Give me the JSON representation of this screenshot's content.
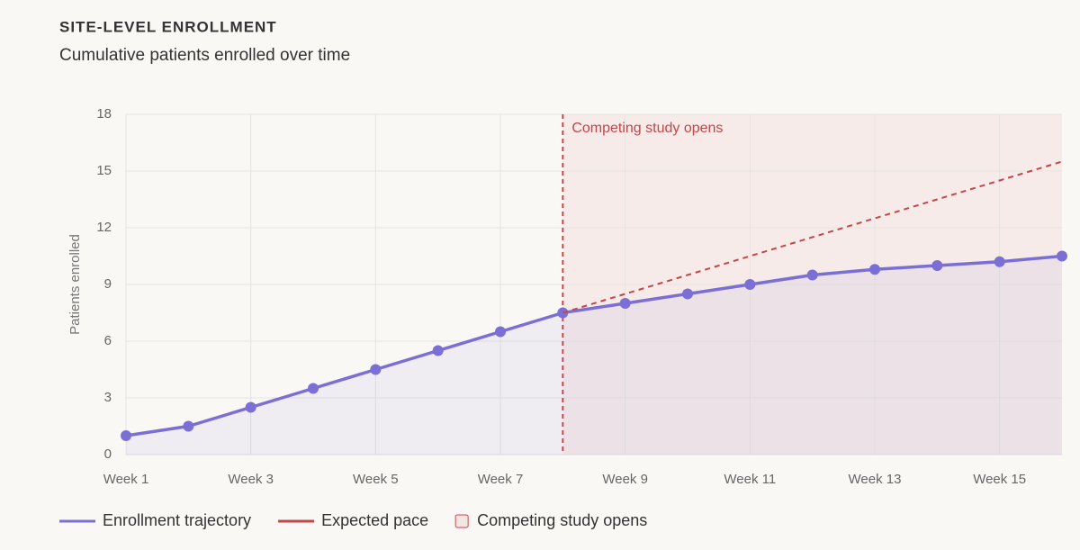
{
  "chart_data": {
    "type": "line",
    "title": "SITE-LEVEL ENROLLMENT",
    "subtitle": "Cumulative patients enrolled over time",
    "y_label": "Patients enrolled",
    "x": [
      1,
      2,
      3,
      4,
      5,
      6,
      7,
      8,
      9,
      10,
      11,
      12,
      13,
      14,
      15,
      16
    ],
    "xlim": [
      1,
      16
    ],
    "xticks": [
      {
        "value": 1,
        "label": "Week 1"
      },
      {
        "value": 3,
        "label": "Week 3"
      },
      {
        "value": 5,
        "label": "Week 5"
      },
      {
        "value": 7,
        "label": "Week 7"
      },
      {
        "value": 9,
        "label": "Week 9"
      },
      {
        "value": 11,
        "label": "Week 11"
      },
      {
        "value": 13,
        "label": "Week 13"
      },
      {
        "value": 15,
        "label": "Week 15"
      }
    ],
    "ylim": [
      0,
      18
    ],
    "yticks": [
      0,
      3,
      6,
      9,
      12,
      15,
      18
    ],
    "grid": true,
    "legend": "bottom-left",
    "series": [
      {
        "name": "Enrollment trajectory",
        "color": "#7b6fd6",
        "values": [
          1,
          1.5,
          2.5,
          3.5,
          4.5,
          5.5,
          6.5,
          7.5,
          8,
          8.5,
          9,
          9.5,
          9.8,
          10,
          10.2,
          10.5
        ]
      },
      {
        "name": "Expected pace",
        "color": "#c0474a",
        "dashed": true,
        "values": [
          null,
          null,
          null,
          null,
          null,
          null,
          null,
          7.5,
          8.5,
          9.5,
          10.5,
          11.5,
          12.5,
          13.5,
          14.5,
          15.5
        ]
      }
    ],
    "annotation": {
      "text": "Competing study opens",
      "x": 8,
      "color": "#c0474a"
    }
  }
}
